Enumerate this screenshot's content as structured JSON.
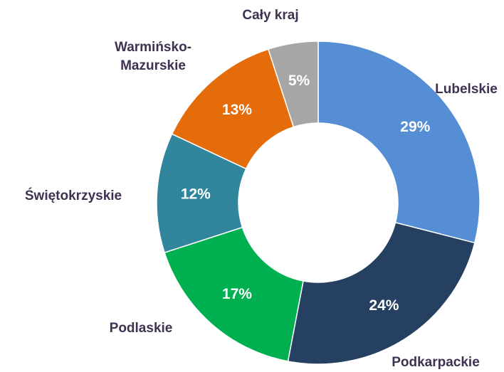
{
  "chart_data": {
    "type": "donut",
    "categories": [
      "Lubelskie",
      "Podkarpackie",
      "Podlaskie",
      "Świętokrzyskie",
      "Warmińsko-Mazurskie",
      "Cały kraj"
    ],
    "values": [
      29,
      24,
      17,
      12,
      13,
      5
    ],
    "value_labels": [
      "29%",
      "24%",
      "17%",
      "12%",
      "13%",
      "5%"
    ],
    "colors": [
      "#558ed5",
      "#254061",
      "#00b050",
      "#31859c",
      "#e46c0a",
      "#a6a6a6"
    ]
  }
}
